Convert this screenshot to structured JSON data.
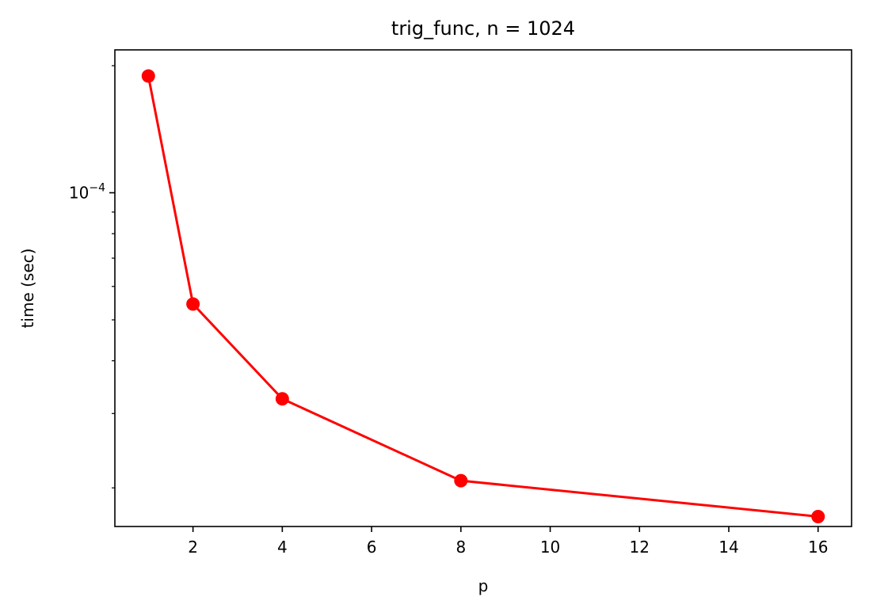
{
  "chart_data": {
    "type": "line",
    "title": "trig_func, n = 1024",
    "xlabel": "p",
    "ylabel": "time (sec)",
    "yscale": "log",
    "xlim": [
      0.25,
      16.75
    ],
    "ylim": [
      1.62e-05,
      0.000218
    ],
    "xticks": [
      2,
      4,
      6,
      8,
      10,
      12,
      14,
      16
    ],
    "xtick_labels": [
      "2",
      "4",
      "6",
      "8",
      "10",
      "12",
      "14",
      "16"
    ],
    "yticks_major": [
      0.0001
    ],
    "ytick_major_labels": [
      {
        "base": "10",
        "exponent": "−4"
      }
    ],
    "yticks_minor": [
      2e-05,
      3e-05,
      4e-05,
      5e-05,
      6e-05,
      7e-05,
      8e-05,
      9e-05,
      0.0002
    ],
    "grid": false,
    "series": [
      {
        "color": "#ff0000",
        "marker": "circle",
        "x": [
          1,
          2,
          4,
          8,
          16
        ],
        "y": [
          0.000189,
          5.45e-05,
          3.25e-05,
          2.08e-05,
          1.71e-05
        ]
      }
    ]
  }
}
